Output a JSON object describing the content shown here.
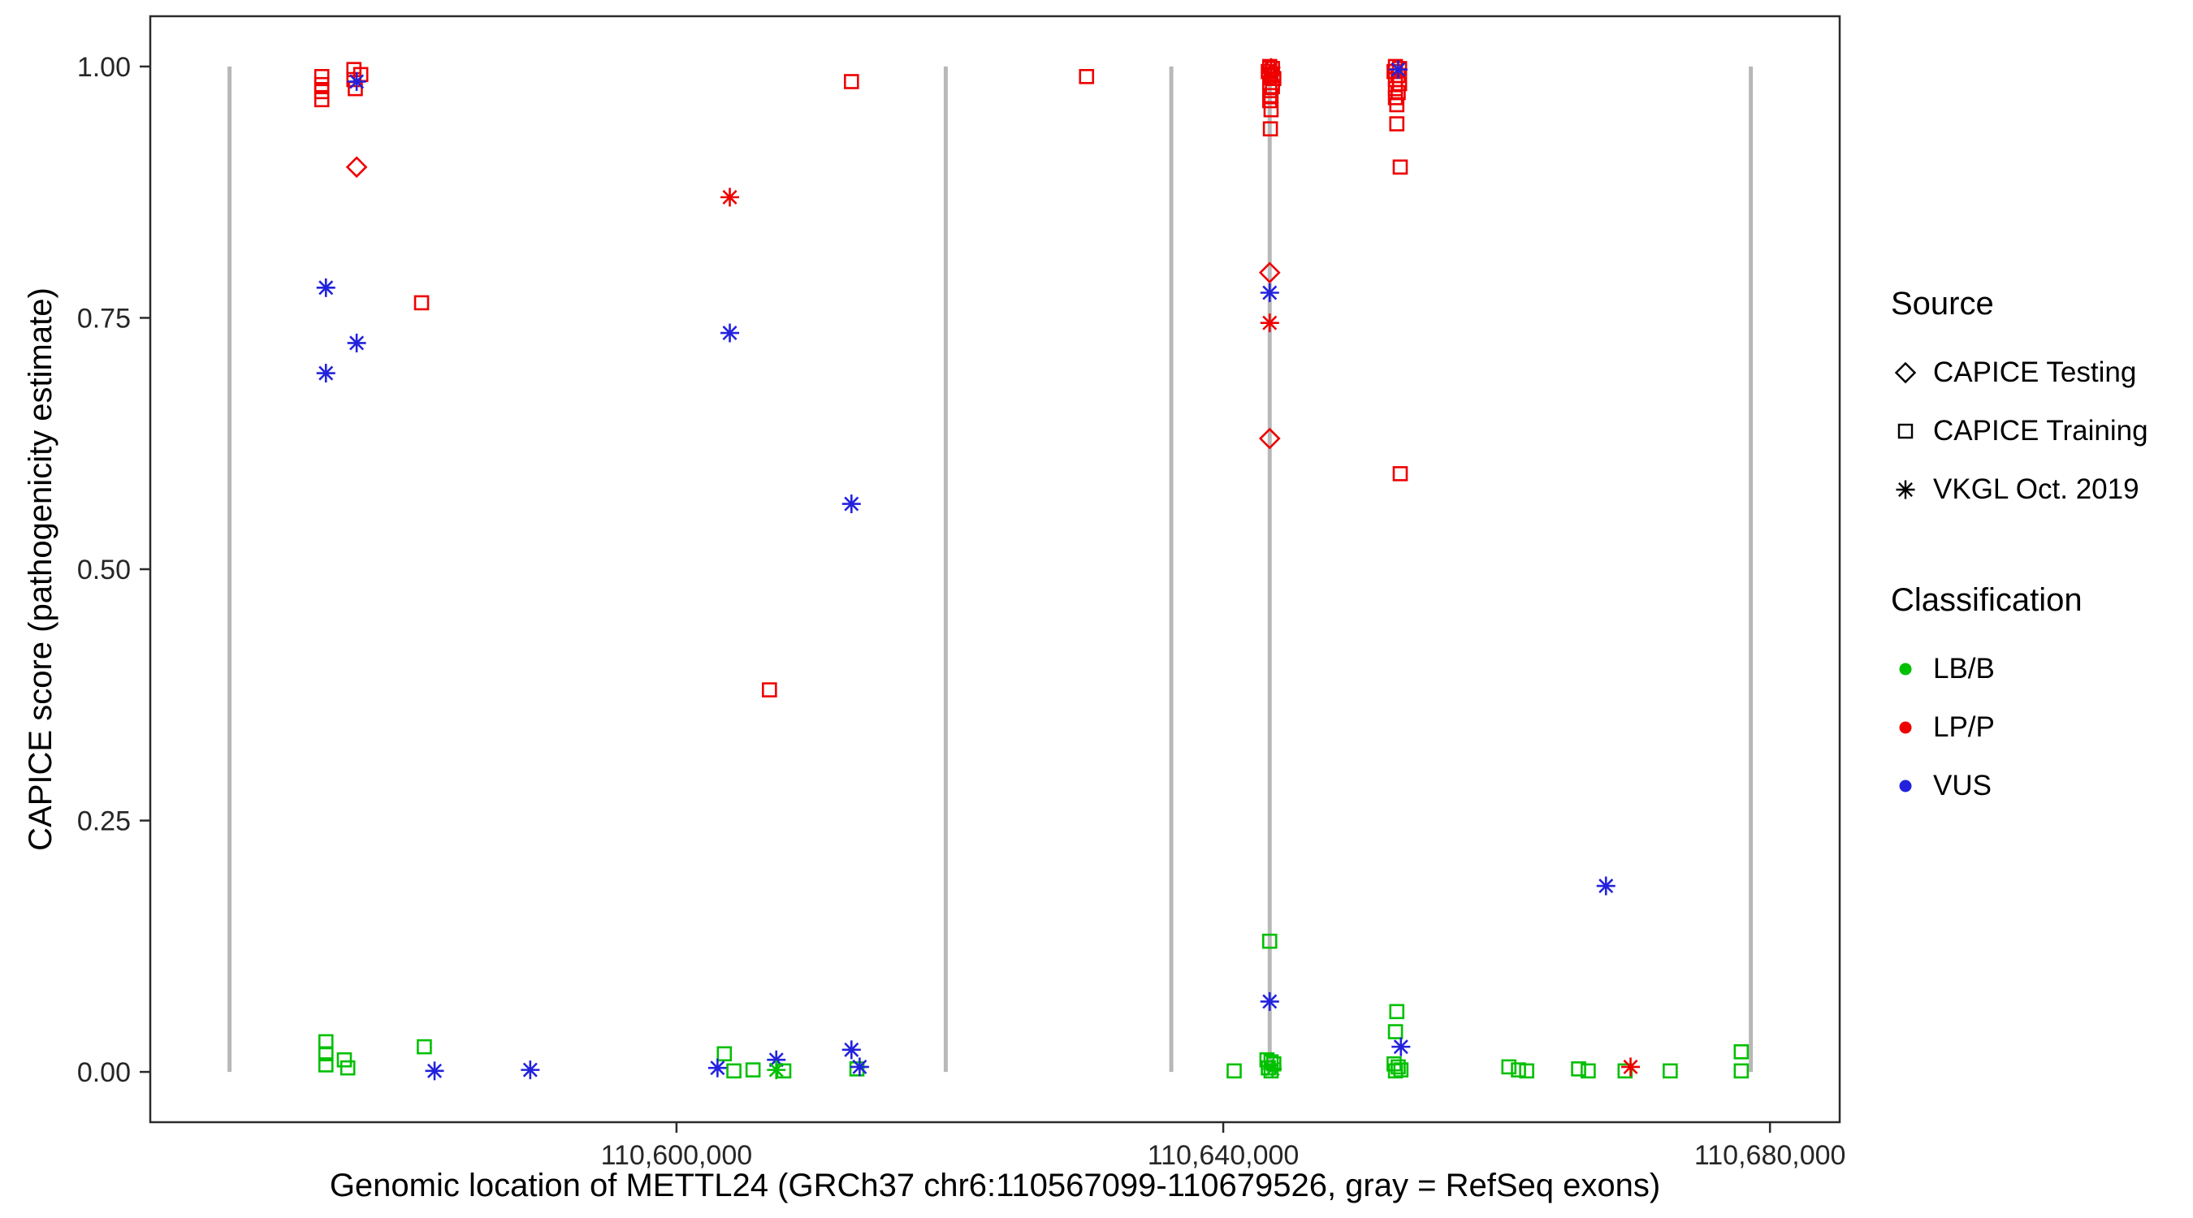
{
  "chart_data": {
    "type": "scatter",
    "title": "",
    "xlabel": "Genomic location of METTL24 (GRCh37 chr6:110567099-110679526, gray = RefSeq exons)",
    "ylabel": "CAPICE score (pathogenicity estimate)",
    "x_domain": [
      110561500,
      110685100
    ],
    "y_domain": [
      -0.05,
      1.05
    ],
    "x_ticks": [
      {
        "v": 110600000,
        "label": "110,600,000"
      },
      {
        "v": 110640000,
        "label": "110,640,000"
      },
      {
        "v": 110680000,
        "label": "110,680,000"
      }
    ],
    "y_ticks": [
      {
        "v": 0.0,
        "label": "0.00"
      },
      {
        "v": 0.25,
        "label": "0.25"
      },
      {
        "v": 0.5,
        "label": "0.50"
      },
      {
        "v": 0.75,
        "label": "0.75"
      },
      {
        "v": 1.0,
        "label": "1.00"
      }
    ],
    "grid": "off",
    "panel_border_color": "#2b2b2b",
    "tick_label_color": "#262626",
    "exon_color": "#b8b8b8",
    "exon_positions": [
      110567300,
      110619700,
      110636200,
      110643400,
      110678600
    ],
    "colors": {
      "LB/B": "#00c000",
      "LP/P": "#ee0000",
      "VUS": "#2222dd"
    },
    "source_markers": {
      "te": "diamond",
      "tr": "square",
      "vk": "asterisk"
    },
    "legend": {
      "source": {
        "title": "Source",
        "items": [
          {
            "label": "CAPICE Testing",
            "marker": "diamond"
          },
          {
            "label": "CAPICE Training",
            "marker": "square"
          },
          {
            "label": "VKGL Oct. 2019",
            "marker": "asterisk"
          }
        ]
      },
      "classification": {
        "title": "Classification",
        "items": [
          {
            "label": "LB/B",
            "color": "#00c000"
          },
          {
            "label": "LP/P",
            "color": "#ee0000"
          },
          {
            "label": "VUS",
            "color": "#2222dd"
          }
        ]
      }
    },
    "points": [
      [
        110574050,
        0.99,
        "tr",
        "LP/P"
      ],
      [
        110574050,
        0.982,
        "tr",
        "LP/P"
      ],
      [
        110574050,
        0.975,
        "tr",
        "LP/P"
      ],
      [
        110574050,
        0.967,
        "tr",
        "LP/P"
      ],
      [
        110576400,
        0.997,
        "tr",
        "LP/P"
      ],
      [
        110576900,
        0.992,
        "tr",
        "LP/P"
      ],
      [
        110576400,
        0.987,
        "tr",
        "LP/P"
      ],
      [
        110576500,
        0.978,
        "tr",
        "LP/P"
      ],
      [
        110576600,
        0.985,
        "vk",
        "VUS"
      ],
      [
        110576600,
        0.9,
        "te",
        "LP/P"
      ],
      [
        110574350,
        0.78,
        "vk",
        "VUS"
      ],
      [
        110576600,
        0.725,
        "vk",
        "VUS"
      ],
      [
        110574350,
        0.695,
        "vk",
        "VUS"
      ],
      [
        110581350,
        0.765,
        "tr",
        "LP/P"
      ],
      [
        110574350,
        0.03,
        "tr",
        "LB/B"
      ],
      [
        110574350,
        0.018,
        "tr",
        "LB/B"
      ],
      [
        110574350,
        0.007,
        "tr",
        "LB/B"
      ],
      [
        110575700,
        0.012,
        "tr",
        "LB/B"
      ],
      [
        110575950,
        0.004,
        "tr",
        "LB/B"
      ],
      [
        110581550,
        0.025,
        "tr",
        "LB/B"
      ],
      [
        110582300,
        0.001,
        "vk",
        "VUS"
      ],
      [
        110589300,
        0.002,
        "vk",
        "VUS"
      ],
      [
        110603900,
        0.87,
        "vk",
        "LP/P"
      ],
      [
        110603900,
        0.735,
        "vk",
        "VUS"
      ],
      [
        110606800,
        0.38,
        "tr",
        "LP/P"
      ],
      [
        110612800,
        0.985,
        "tr",
        "LP/P"
      ],
      [
        110612800,
        0.565,
        "vk",
        "VUS"
      ],
      [
        110603500,
        0.018,
        "tr",
        "LB/B"
      ],
      [
        110603000,
        0.004,
        "vk",
        "VUS"
      ],
      [
        110604200,
        0.001,
        "tr",
        "LB/B"
      ],
      [
        110605600,
        0.002,
        "tr",
        "LB/B"
      ],
      [
        110607300,
        0.012,
        "vk",
        "VUS"
      ],
      [
        110607300,
        0.002,
        "vk",
        "LB/B"
      ],
      [
        110607850,
        0.001,
        "tr",
        "LB/B"
      ],
      [
        110612800,
        0.022,
        "vk",
        "VUS"
      ],
      [
        110613200,
        0.003,
        "tr",
        "LB/B"
      ],
      [
        110613400,
        0.005,
        "vk",
        "VUS"
      ],
      [
        110630000,
        0.99,
        "tr",
        "LP/P"
      ],
      [
        110643400,
        1.0,
        "tr",
        "LP/P"
      ],
      [
        110643600,
        0.998,
        "tr",
        "LP/P"
      ],
      [
        110643300,
        0.995,
        "tr",
        "LP/P"
      ],
      [
        110643500,
        0.991,
        "tr",
        "LP/P"
      ],
      [
        110643700,
        0.988,
        "tr",
        "LP/P"
      ],
      [
        110643400,
        0.984,
        "tr",
        "LP/P"
      ],
      [
        110643600,
        0.98,
        "tr",
        "LP/P"
      ],
      [
        110643400,
        0.976,
        "tr",
        "LP/P"
      ],
      [
        110643500,
        0.971,
        "tr",
        "LP/P"
      ],
      [
        110643400,
        0.966,
        "tr",
        "LP/P"
      ],
      [
        110643500,
        0.957,
        "tr",
        "LP/P"
      ],
      [
        110643450,
        0.938,
        "tr",
        "LP/P"
      ],
      [
        110643500,
        0.999,
        "vk",
        "LP/P"
      ],
      [
        110643400,
        0.795,
        "te",
        "LP/P"
      ],
      [
        110643400,
        0.775,
        "vk",
        "VUS"
      ],
      [
        110643400,
        0.745,
        "vk",
        "LP/P"
      ],
      [
        110643400,
        0.63,
        "te",
        "LP/P"
      ],
      [
        110643400,
        0.13,
        "tr",
        "LB/B"
      ],
      [
        110643400,
        0.07,
        "vk",
        "VUS"
      ],
      [
        110643200,
        0.012,
        "tr",
        "LB/B"
      ],
      [
        110643500,
        0.01,
        "tr",
        "LB/B"
      ],
      [
        110643700,
        0.008,
        "tr",
        "LB/B"
      ],
      [
        110643300,
        0.004,
        "tr",
        "LB/B"
      ],
      [
        110643600,
        0.003,
        "vk",
        "LB/B"
      ],
      [
        110643500,
        0.001,
        "tr",
        "LB/B"
      ],
      [
        110640800,
        0.001,
        "tr",
        "LB/B"
      ],
      [
        110652600,
        1.0,
        "tr",
        "LP/P"
      ],
      [
        110652900,
        0.998,
        "tr",
        "LP/P"
      ],
      [
        110652500,
        0.995,
        "tr",
        "LP/P"
      ],
      [
        110652800,
        0.991,
        "tr",
        "LP/P"
      ],
      [
        110652600,
        0.987,
        "tr",
        "LP/P"
      ],
      [
        110652900,
        0.983,
        "tr",
        "LP/P"
      ],
      [
        110652600,
        0.978,
        "tr",
        "LP/P"
      ],
      [
        110652800,
        0.974,
        "tr",
        "LP/P"
      ],
      [
        110652600,
        0.969,
        "tr",
        "LP/P"
      ],
      [
        110652700,
        0.962,
        "tr",
        "LP/P"
      ],
      [
        110652700,
        0.943,
        "tr",
        "LP/P"
      ],
      [
        110652800,
        0.997,
        "vk",
        "VUS"
      ],
      [
        110652950,
        0.9,
        "tr",
        "LP/P"
      ],
      [
        110652950,
        0.595,
        "tr",
        "LP/P"
      ],
      [
        110652700,
        0.06,
        "tr",
        "LB/B"
      ],
      [
        110652600,
        0.04,
        "tr",
        "LB/B"
      ],
      [
        110653000,
        0.025,
        "vk",
        "VUS"
      ],
      [
        110652500,
        0.008,
        "tr",
        "LB/B"
      ],
      [
        110652800,
        0.005,
        "tr",
        "LB/B"
      ],
      [
        110653000,
        0.002,
        "tr",
        "LB/B"
      ],
      [
        110652600,
        0.001,
        "tr",
        "LB/B"
      ],
      [
        110668000,
        0.185,
        "vk",
        "VUS"
      ],
      [
        110660900,
        0.005,
        "tr",
        "LB/B"
      ],
      [
        110661600,
        0.002,
        "tr",
        "LB/B"
      ],
      [
        110662200,
        0.001,
        "tr",
        "LB/B"
      ],
      [
        110666000,
        0.003,
        "tr",
        "LB/B"
      ],
      [
        110666700,
        0.001,
        "tr",
        "LB/B"
      ],
      [
        110669400,
        0.001,
        "tr",
        "LB/B"
      ],
      [
        110669800,
        0.005,
        "vk",
        "LP/P"
      ],
      [
        110672700,
        0.001,
        "tr",
        "LB/B"
      ],
      [
        110677900,
        0.02,
        "tr",
        "LB/B"
      ],
      [
        110677900,
        0.001,
        "tr",
        "LB/B"
      ]
    ]
  }
}
